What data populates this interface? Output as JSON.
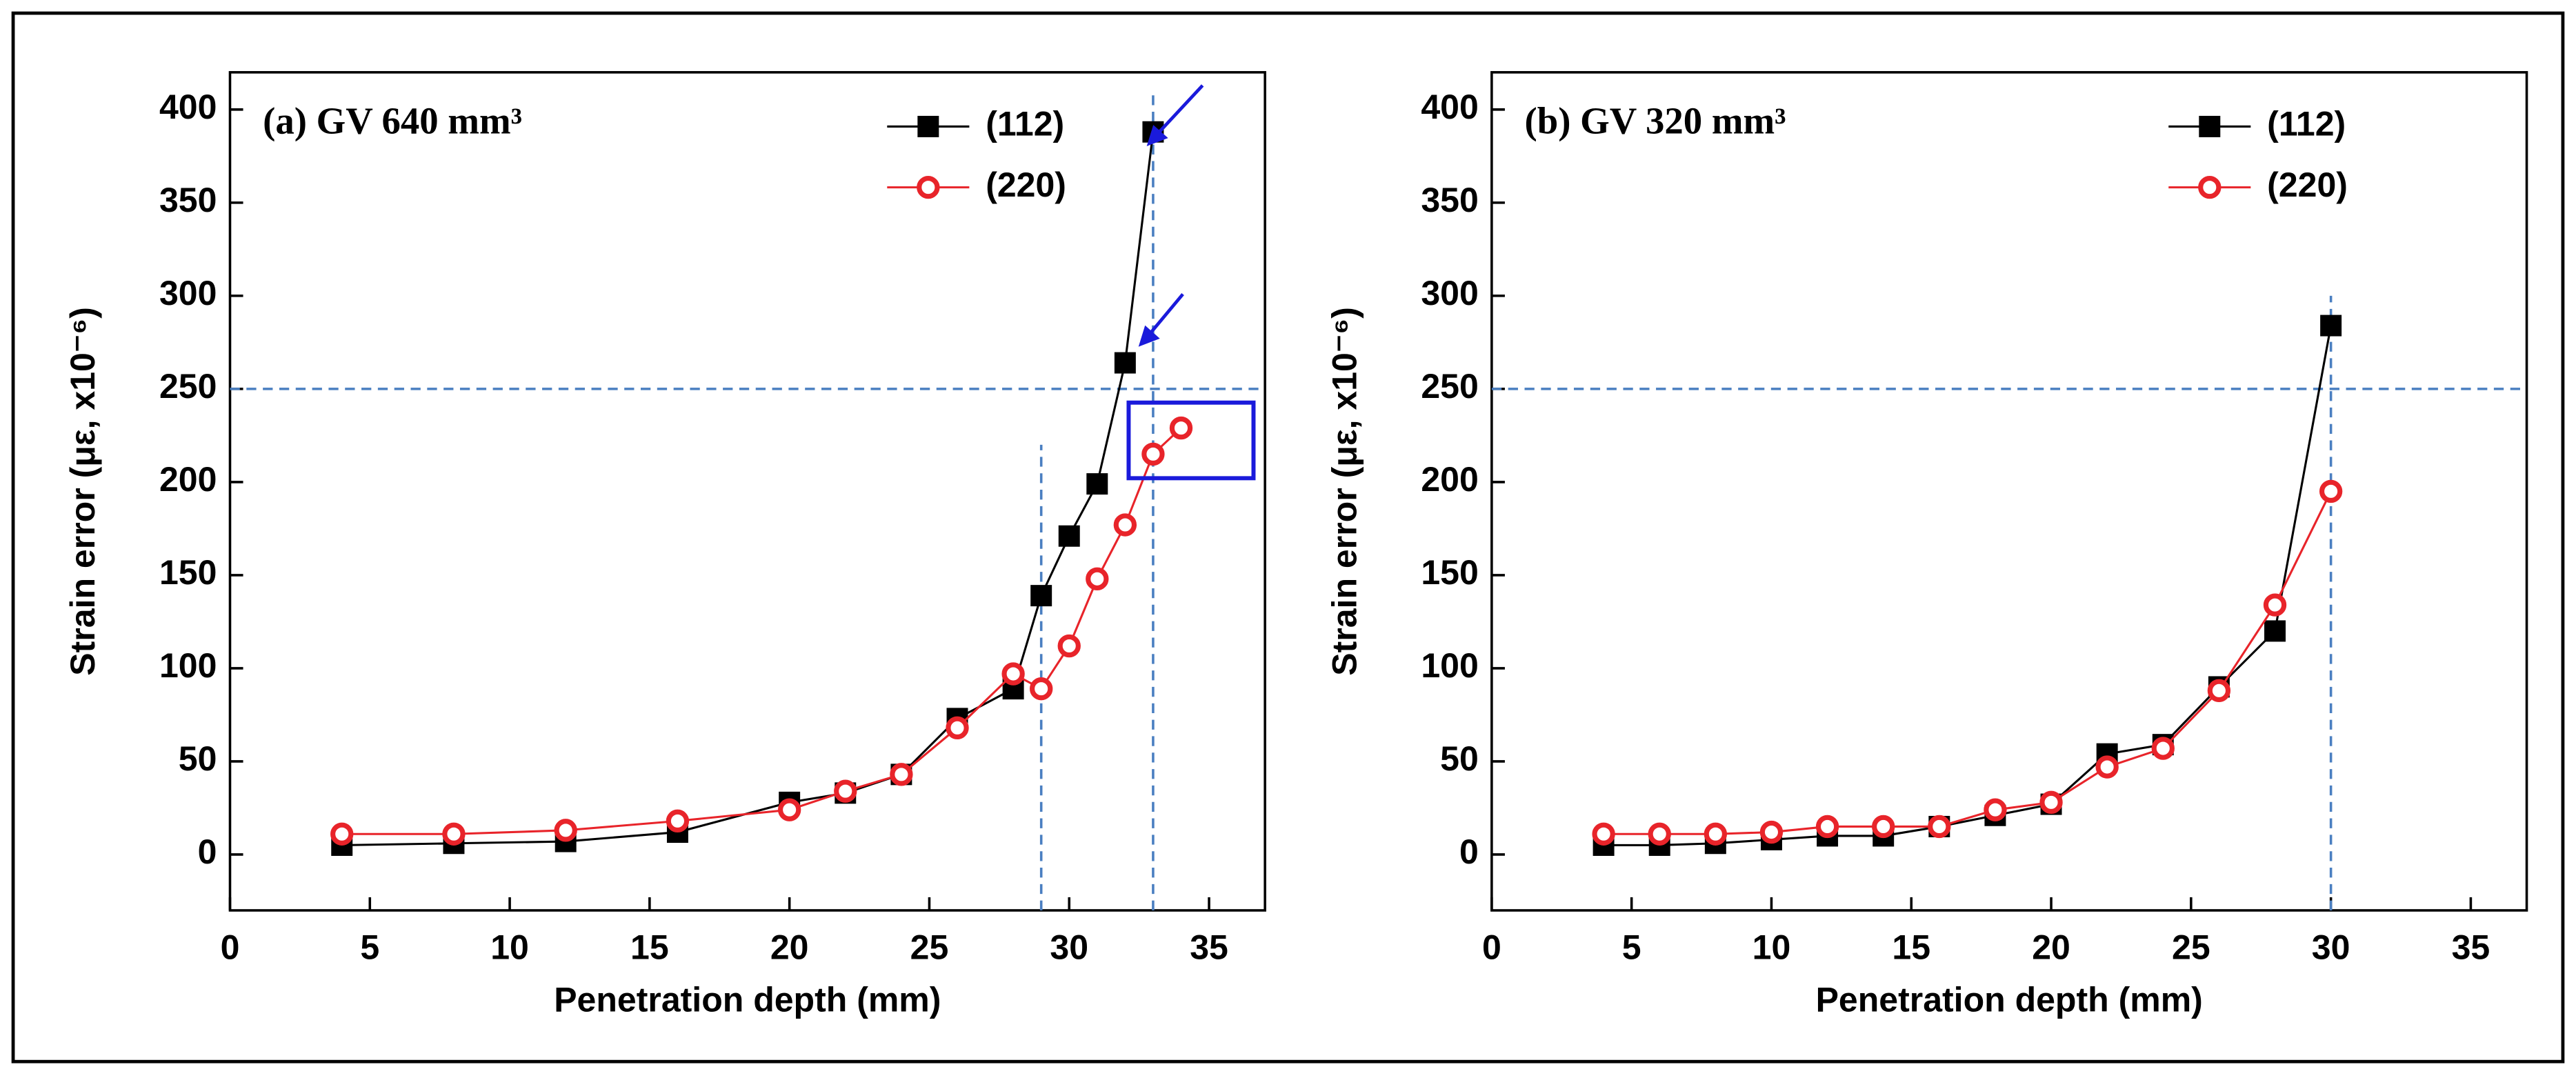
{
  "chart_data": [
    {
      "type": "line",
      "title": "(a)  GV 640 mm³",
      "xlabel": "Penetration depth (mm)",
      "ylabel": "Strain error (με, x10⁻⁶)",
      "xlim": [
        0,
        37
      ],
      "ylim": [
        -30,
        420
      ],
      "xticks": [
        0,
        5,
        10,
        15,
        20,
        25,
        30,
        35
      ],
      "yticks": [
        0,
        50,
        100,
        150,
        200,
        250,
        300,
        350,
        400
      ],
      "hlines": [
        250
      ],
      "vlines": [
        {
          "x": 29,
          "ymax": 220
        },
        {
          "x": 33,
          "ymax": 410
        }
      ],
      "series": [
        {
          "name": "(112)",
          "color": "#000000",
          "marker": "square",
          "x": [
            4,
            8,
            12,
            16,
            20,
            22,
            24,
            26,
            28,
            29,
            30,
            31,
            32,
            33
          ],
          "values": [
            5,
            6,
            7,
            12,
            28,
            33,
            43,
            73,
            89,
            139,
            171,
            199,
            264,
            388
          ]
        },
        {
          "name": "(220)",
          "color": "#e8242a",
          "marker": "circle",
          "x": [
            4,
            8,
            12,
            16,
            20,
            22,
            24,
            26,
            28,
            29,
            30,
            31,
            32,
            33,
            34
          ],
          "values": [
            11,
            11,
            13,
            18,
            24,
            34,
            43,
            68,
            97,
            89,
            112,
            148,
            177,
            215,
            229
          ]
        }
      ]
    },
    {
      "type": "line",
      "title": "(b)  GV 320 mm³",
      "xlabel": "Penetration depth (mm)",
      "ylabel": "Strain error (με, x10⁻⁶)",
      "xlim": [
        0,
        37
      ],
      "ylim": [
        -30,
        420
      ],
      "xticks": [
        0,
        5,
        10,
        15,
        20,
        25,
        30,
        35
      ],
      "yticks": [
        0,
        50,
        100,
        150,
        200,
        250,
        300,
        350,
        400
      ],
      "hlines": [
        250
      ],
      "vlines": [
        {
          "x": 30,
          "ymax": 300
        }
      ],
      "series": [
        {
          "name": "(112)",
          "color": "#000000",
          "marker": "square",
          "x": [
            4,
            6,
            8,
            10,
            12,
            14,
            16,
            18,
            20,
            22,
            24,
            26,
            28,
            30
          ],
          "values": [
            5,
            5,
            6,
            8,
            10,
            10,
            15,
            21,
            27,
            54,
            59,
            90,
            120,
            284
          ]
        },
        {
          "name": "(220)",
          "color": "#e8242a",
          "marker": "circle",
          "x": [
            4,
            6,
            8,
            10,
            12,
            14,
            16,
            18,
            20,
            22,
            24,
            26,
            28,
            30
          ],
          "values": [
            11,
            11,
            11,
            12,
            15,
            15,
            15,
            24,
            28,
            47,
            57,
            88,
            134,
            195
          ]
        }
      ]
    }
  ]
}
